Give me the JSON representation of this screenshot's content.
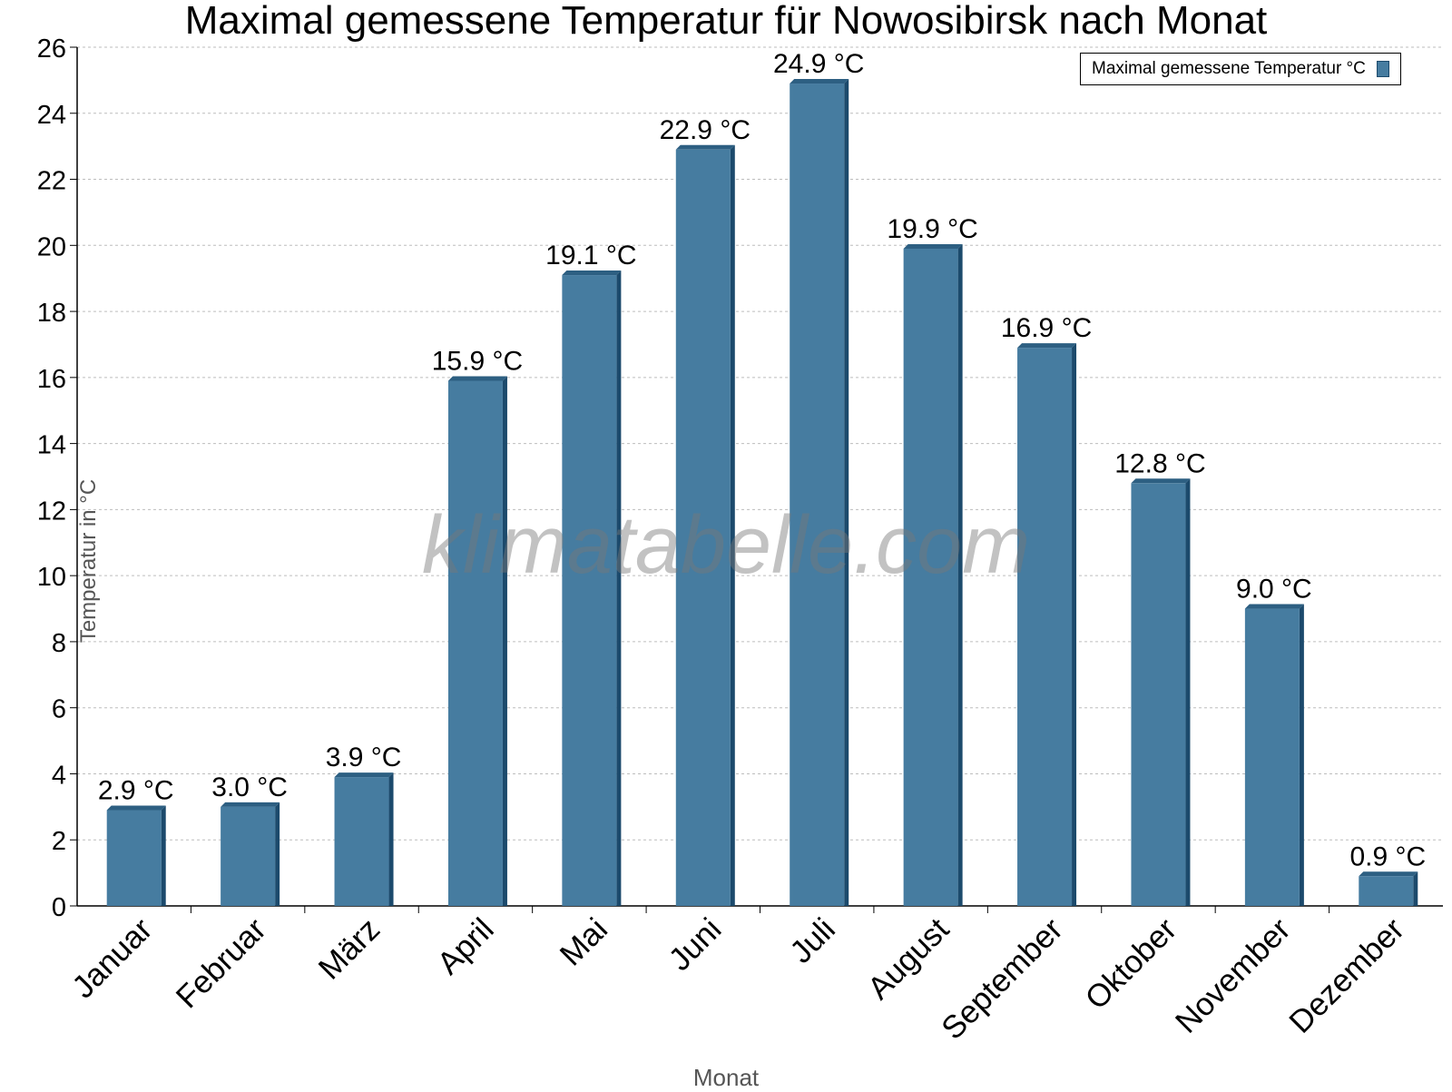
{
  "chart_data": {
    "type": "bar",
    "title": "Maximal gemessene Temperatur für Nowosibirsk nach Monat",
    "xlabel": "Monat",
    "ylabel": "Temperatur in °C",
    "categories": [
      "Januar",
      "Februar",
      "März",
      "April",
      "Mai",
      "Juni",
      "Juli",
      "August",
      "September",
      "Oktober",
      "November",
      "Dezember"
    ],
    "series": [
      {
        "name": "Maximal gemessene Temperatur °C",
        "values": [
          2.9,
          3.0,
          3.9,
          15.9,
          19.1,
          22.9,
          24.9,
          19.9,
          16.9,
          12.8,
          9.0,
          0.9
        ],
        "labels": [
          "2.9 °C",
          "3.0 °C",
          "3.9 °C",
          "15.9 °C",
          "19.1 °C",
          "22.9 °C",
          "24.9 °C",
          "19.9 °C",
          "16.9 °C",
          "12.8 °C",
          "9.0 °C",
          "0.9 °C"
        ]
      }
    ],
    "ylim": [
      0,
      26
    ],
    "yticks": [
      "0",
      "2",
      "4",
      "6",
      "8",
      "10",
      "12",
      "14",
      "16",
      "18",
      "20",
      "22",
      "24",
      "26"
    ],
    "grid": true,
    "legend_position": "top-right",
    "colors": {
      "bar": "#467ca0",
      "bar_side": "#1c4a6c",
      "bar_top": "#2d5f82"
    }
  },
  "watermark": "klimatabelle.com"
}
